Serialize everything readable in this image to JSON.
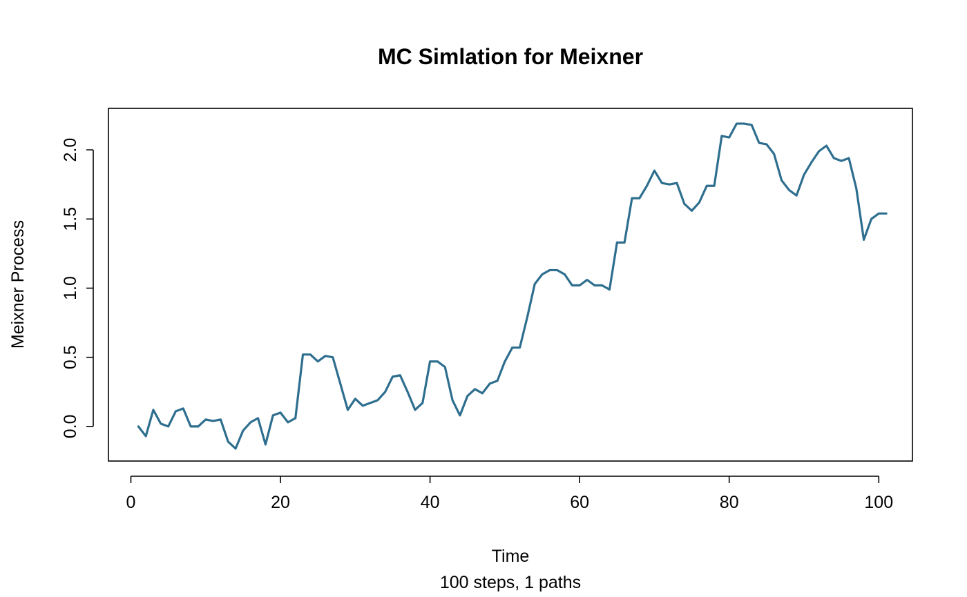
{
  "chart_data": {
    "type": "line",
    "title": "MC Simlation for Meixner",
    "xlabel": "Time",
    "sublabel": "100 steps, 1 paths",
    "ylabel": "Meixner Process",
    "xlim": [
      -3,
      104.5
    ],
    "ylim": [
      -0.25,
      2.3
    ],
    "xticks": [
      0,
      20,
      40,
      60,
      80,
      100
    ],
    "yticks": [
      0.0,
      0.5,
      1.0,
      1.5,
      2.0
    ],
    "xtick_labels": [
      "0",
      "20",
      "40",
      "60",
      "80",
      "100"
    ],
    "ytick_labels": [
      "0.0",
      "0.5",
      "1.0",
      "1.5",
      "2.0"
    ],
    "grid": false,
    "series": [
      {
        "color": "#2e6e8e",
        "x": [
          1,
          2,
          3,
          4,
          5,
          6,
          7,
          8,
          9,
          10,
          11,
          12,
          13,
          14,
          15,
          16,
          17,
          18,
          19,
          20,
          21,
          22,
          23,
          24,
          25,
          26,
          27,
          28,
          29,
          30,
          31,
          32,
          33,
          34,
          35,
          36,
          37,
          38,
          39,
          40,
          41,
          42,
          43,
          44,
          45,
          46,
          47,
          48,
          49,
          50,
          51,
          52,
          53,
          54,
          55,
          56,
          57,
          58,
          59,
          60,
          61,
          62,
          63,
          64,
          65,
          66,
          67,
          68,
          69,
          70,
          71,
          72,
          73,
          74,
          75,
          76,
          77,
          78,
          79,
          80,
          81,
          82,
          83,
          84,
          85,
          86,
          87,
          88,
          89,
          90,
          91,
          92,
          93,
          94,
          95,
          96,
          97,
          98,
          99,
          100,
          101
        ],
        "y": [
          0.0,
          -0.07,
          0.12,
          0.02,
          0.0,
          0.11,
          0.13,
          0.0,
          0.0,
          0.05,
          0.04,
          0.05,
          -0.11,
          -0.16,
          -0.03,
          0.03,
          0.06,
          -0.13,
          0.08,
          0.1,
          0.03,
          0.06,
          0.52,
          0.52,
          0.47,
          0.51,
          0.5,
          0.31,
          0.12,
          0.2,
          0.15,
          0.17,
          0.19,
          0.25,
          0.36,
          0.37,
          0.25,
          0.12,
          0.17,
          0.47,
          0.47,
          0.43,
          0.19,
          0.08,
          0.22,
          0.27,
          0.24,
          0.31,
          0.33,
          0.47,
          0.57,
          0.57,
          0.79,
          1.03,
          1.1,
          1.13,
          1.13,
          1.1,
          1.02,
          1.02,
          1.06,
          1.02,
          1.02,
          0.99,
          1.33,
          1.33,
          1.65,
          1.65,
          1.74,
          1.85,
          1.76,
          1.75,
          1.76,
          1.61,
          1.56,
          1.62,
          1.74,
          1.74,
          2.1,
          2.09,
          2.19,
          2.19,
          2.18,
          2.05,
          2.04,
          1.97,
          1.78,
          1.71,
          1.67,
          1.82,
          1.91,
          1.99,
          2.03,
          1.94,
          1.92,
          1.94,
          1.72,
          1.35,
          1.5,
          1.54,
          1.54
        ]
      }
    ]
  }
}
